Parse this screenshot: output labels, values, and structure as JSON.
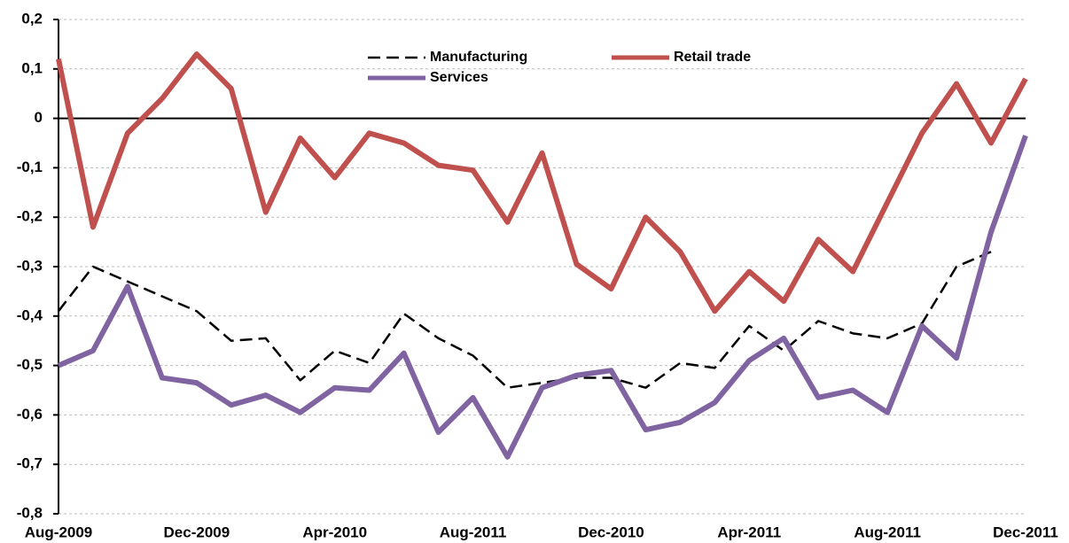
{
  "chart_data": {
    "type": "line",
    "categories": [
      "Aug-2009",
      null,
      null,
      null,
      "Dec-2009",
      null,
      null,
      null,
      "Apr-2010",
      null,
      null,
      null,
      "Aug-2011",
      null,
      null,
      null,
      "Dec-2010",
      null,
      null,
      null,
      "Apr-2011",
      null,
      null,
      null,
      "Aug-2011",
      null,
      null,
      null,
      "Dec-2011"
    ],
    "series": [
      {
        "name": "Manufacturing",
        "color": "#000000",
        "dashed": true,
        "values": [
          -0.39,
          -0.3,
          -0.33,
          -0.36,
          -0.39,
          -0.45,
          -0.445,
          -0.53,
          -0.47,
          -0.495,
          -0.395,
          -0.445,
          -0.48,
          -0.545,
          -0.535,
          -0.525,
          -0.525,
          -0.545,
          -0.495,
          -0.505,
          -0.42,
          -0.47,
          -0.41,
          -0.435,
          -0.445,
          -0.415,
          -0.3,
          -0.27,
          null
        ]
      },
      {
        "name": "Retail trade",
        "color": "#c0504d",
        "dashed": false,
        "values": [
          0.12,
          -0.22,
          -0.03,
          0.04,
          0.13,
          0.06,
          -0.19,
          -0.04,
          -0.12,
          -0.03,
          -0.05,
          -0.095,
          -0.105,
          -0.21,
          -0.07,
          -0.295,
          -0.345,
          -0.2,
          -0.27,
          -0.39,
          -0.31,
          -0.37,
          -0.245,
          -0.31,
          -0.17,
          -0.03,
          0.07,
          -0.05,
          0.08
        ]
      },
      {
        "name": "Services",
        "color": "#8064a2",
        "dashed": false,
        "values": [
          -0.5,
          -0.47,
          -0.34,
          -0.525,
          -0.535,
          -0.58,
          -0.56,
          -0.595,
          -0.545,
          -0.55,
          -0.475,
          -0.635,
          -0.565,
          -0.685,
          -0.545,
          -0.52,
          -0.51,
          -0.63,
          -0.615,
          -0.575,
          -0.49,
          -0.445,
          -0.565,
          -0.55,
          -0.595,
          -0.42,
          -0.485,
          -0.23,
          -0.035
        ]
      }
    ],
    "ylim": [
      -0.8,
      0.2
    ],
    "yticks": [
      {
        "value": -0.8,
        "label": "-0,8"
      },
      {
        "value": -0.7,
        "label": "-0,7"
      },
      {
        "value": -0.6,
        "label": "-0,6"
      },
      {
        "value": -0.5,
        "label": "-0,5"
      },
      {
        "value": -0.4,
        "label": "-0,4"
      },
      {
        "value": -0.3,
        "label": "-0,3"
      },
      {
        "value": -0.2,
        "label": "-0,2"
      },
      {
        "value": -0.1,
        "label": "-0,1"
      },
      0,
      {
        "value": 0.1,
        "label": "0,1"
      },
      {
        "value": 0.2,
        "label": "0,2"
      }
    ],
    "grid": true
  }
}
